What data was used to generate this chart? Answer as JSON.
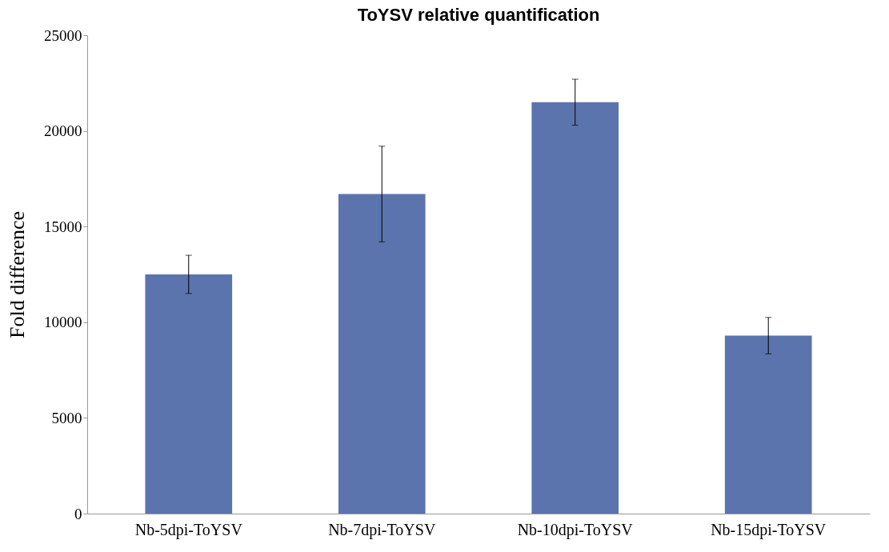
{
  "chart_data": {
    "type": "bar",
    "title": "ToYSV relative quantification",
    "ylabel": "Fold difference",
    "categories": [
      "Nb-5dpi-ToYSV",
      "Nb-7dpi-ToYSV",
      "Nb-10dpi-ToYSV",
      "Nb-15dpi-ToYSV"
    ],
    "values": [
      12500,
      16700,
      21500,
      9300
    ],
    "errors": [
      1000,
      2500,
      1200,
      950
    ],
    "color": "#5b74ae",
    "ylim": [
      0,
      25000
    ],
    "yticks": [
      0,
      5000,
      10000,
      15000,
      20000,
      25000
    ],
    "grid": false
  }
}
